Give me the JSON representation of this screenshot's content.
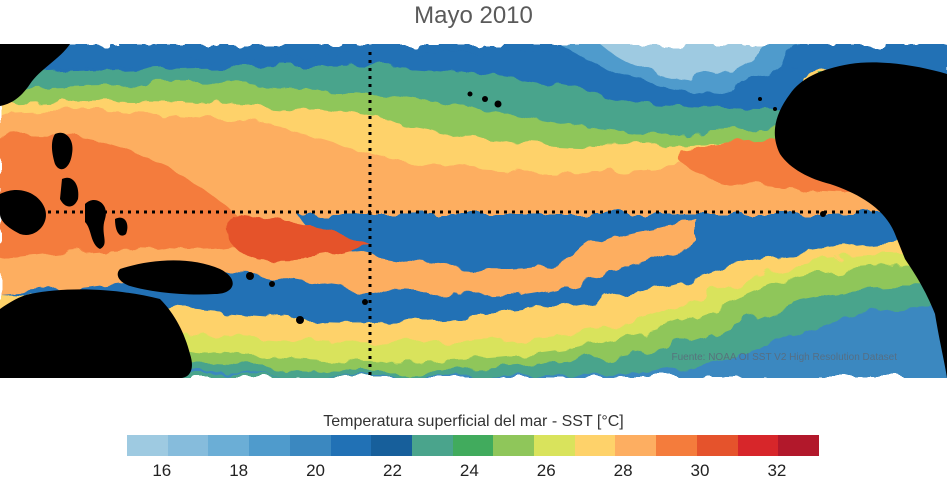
{
  "title": "Mayo 2010",
  "source_credit": "Fuente: NOAA OI SST V2 High Resolution Dataset",
  "legend": {
    "label": "Temperatura superficial del mar - SST  [°C]",
    "colors": [
      "#9ecae1",
      "#86bcdc",
      "#6baed6",
      "#4f9bcc",
      "#3b88c0",
      "#2171b5",
      "#175f9b",
      "#4aa48c",
      "#41ab5d",
      "#8fc65a",
      "#d9e35c",
      "#fed26a",
      "#fdae61",
      "#f47c3c",
      "#e5532c",
      "#d7262a",
      "#b2182b"
    ],
    "tick_values": [
      16,
      18,
      20,
      22,
      24,
      26,
      28,
      30,
      32
    ],
    "tick_labels": [
      "16",
      "18",
      "20",
      "22",
      "24",
      "26",
      "28",
      "30",
      "32"
    ],
    "range": [
      15,
      33
    ]
  },
  "map": {
    "region": "Tropical Pacific Ocean",
    "land_color": "#000000",
    "reference_lines": [
      "equator-line",
      "dateline-meridian"
    ]
  }
}
